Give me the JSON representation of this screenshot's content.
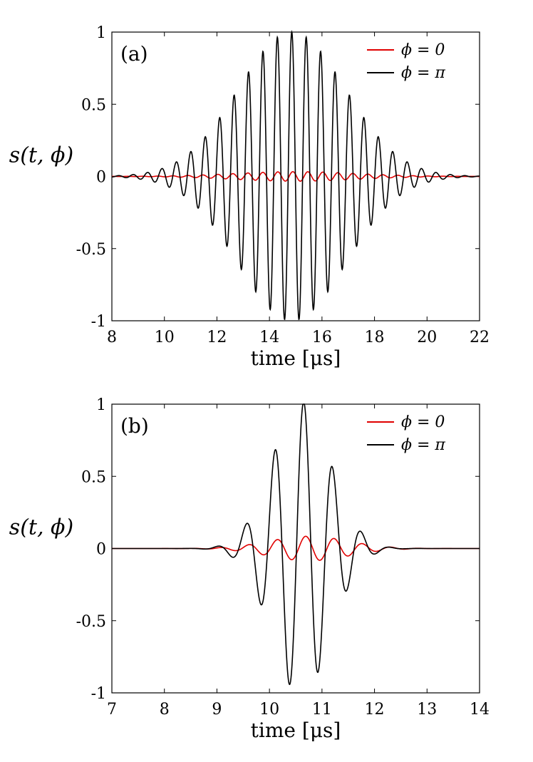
{
  "chart_data": [
    {
      "type": "line",
      "panel_label": "(a)",
      "xlabel": "time [μs]",
      "ylabel": "s(t, ϕ)",
      "xlim": [
        8,
        22
      ],
      "ylim": [
        -1,
        1
      ],
      "xticks": [
        8,
        10,
        12,
        14,
        16,
        18,
        20,
        22
      ],
      "xtick_labels": [
        "8",
        "10",
        "12",
        "14",
        "16",
        "18",
        "20",
        "22"
      ],
      "yticks": [
        1,
        0.5,
        0,
        -0.5,
        -1
      ],
      "ytick_labels": [
        "1",
        "0.5",
        "0",
        "-0.5",
        "-1"
      ],
      "legend_position": "top-right",
      "grid": false,
      "series": [
        {
          "name": "ϕ = 0",
          "color": "#e00000",
          "model": {
            "t0": 15.0,
            "sigma": 2.3,
            "freq": 1.75,
            "amp": 0.033,
            "phase": 1.2
          }
        },
        {
          "name": "ϕ = π",
          "color": "#000000",
          "model": {
            "t0": 14.85,
            "sigma": 2.05,
            "freq": 1.82,
            "amp": 1.0,
            "phase": 0.0
          }
        }
      ]
    },
    {
      "type": "line",
      "panel_label": "(b)",
      "xlabel": "time [μs]",
      "ylabel": "s(t, ϕ)",
      "xlim": [
        7,
        14
      ],
      "ylim": [
        -1,
        1
      ],
      "xticks": [
        7,
        8,
        9,
        10,
        11,
        12,
        13,
        14
      ],
      "xtick_labels": [
        "7",
        "8",
        "9",
        "10",
        "11",
        "12",
        "13",
        "14"
      ],
      "yticks": [
        1,
        0.5,
        0,
        -0.5,
        -1
      ],
      "ytick_labels": [
        "1",
        "0.5",
        "0",
        "-0.5",
        "-1"
      ],
      "legend_position": "top-right",
      "grid": false,
      "series": [
        {
          "name": "ϕ = 0",
          "color": "#e00000",
          "model": {
            "t0": 10.75,
            "sigma": 0.75,
            "freq": 1.85,
            "amp": 0.085,
            "phase": 0.7
          }
        },
        {
          "name": "ϕ = π",
          "color": "#000000",
          "model": {
            "t0": 10.6,
            "sigma": 0.55,
            "freq": 1.82,
            "amp": 1.02,
            "phase": -0.6
          }
        }
      ]
    }
  ]
}
